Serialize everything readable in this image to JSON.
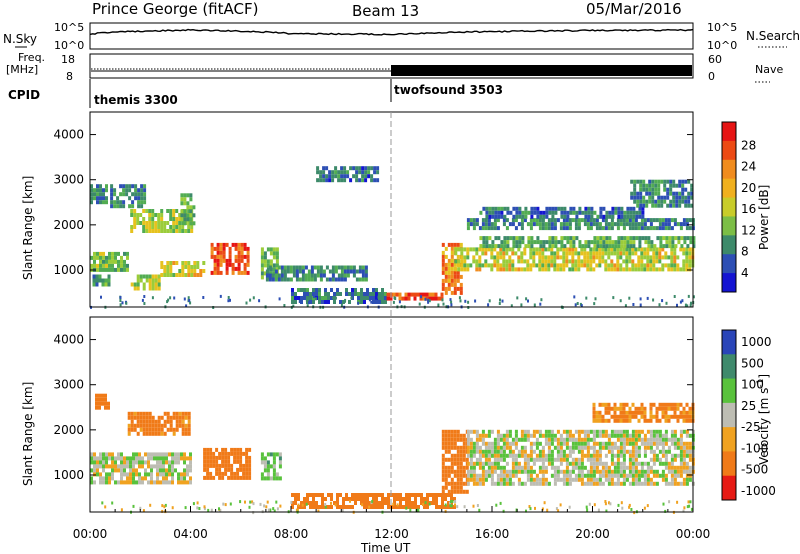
{
  "header": {
    "station": "Prince George (fitACF)",
    "beam": "Beam 13",
    "date": "05/Mar/2016"
  },
  "top_panels": {
    "nsky_label": "N.Sky",
    "nsearch_label": "N.Search",
    "noise_ticks": [
      "10^5",
      "10^0"
    ],
    "freq_label_1": "Freq.",
    "freq_label_2": "[MHz]",
    "freq_ticks": [
      "18",
      "8"
    ],
    "nave_label": "Nave",
    "nave_ticks": [
      "60",
      "0"
    ],
    "cpid_label": "CPID",
    "cpid_entries": [
      {
        "name": "themis 3300",
        "start_hour": 0
      },
      {
        "name": "twofsound 3503",
        "start_hour": 12
      }
    ]
  },
  "axes": {
    "ylabel": "Slant Range [km]",
    "y_ticks": [
      1000,
      2000,
      3000,
      4000
    ],
    "ylim": [
      180,
      4500
    ],
    "xlabel": "Time UT",
    "x_ticks": [
      "00:00",
      "04:00",
      "08:00",
      "12:00",
      "16:00",
      "20:00",
      "00:00"
    ],
    "xlim_hours": [
      0,
      24
    ]
  },
  "power_colorbar": {
    "label": "Power [dB]",
    "ticks": [
      "4",
      "8",
      "12",
      "16",
      "20",
      "24",
      "28"
    ],
    "range": [
      0,
      32
    ]
  },
  "velocity_colorbar": {
    "label_main": "Velocity",
    "label_unit": "[m s",
    "label_exp": "-1",
    "label_close": "]",
    "ticks": [
      "1000",
      "500",
      "100",
      "25",
      "-25",
      "-100",
      "-500",
      "-1000"
    ]
  },
  "chart_data": [
    {
      "type": "heatmap",
      "title": "Power",
      "xlabel": "Time UT",
      "ylabel": "Slant Range [km]",
      "x_range_hours": [
        0,
        24
      ],
      "y_range_km": [
        180,
        4500
      ],
      "value_units": "dB",
      "value_range": [
        0,
        32
      ],
      "echo_regions": [
        {
          "t": [
            0.0,
            1.5
          ],
          "range": [
            1000,
            1400
          ],
          "power": 16
        },
        {
          "t": [
            0.1,
            0.8
          ],
          "range": [
            700,
            900
          ],
          "power": 12
        },
        {
          "t": [
            0.0,
            0.6
          ],
          "range": [
            2500,
            2900
          ],
          "power": 10
        },
        {
          "t": [
            1.5,
            2.8
          ],
          "range": [
            550,
            900
          ],
          "power": 18
        },
        {
          "t": [
            2.8,
            4.5
          ],
          "range": [
            900,
            1200
          ],
          "power": 20
        },
        {
          "t": [
            1.6,
            4.0
          ],
          "range": [
            1850,
            2350
          ],
          "power": 18
        },
        {
          "t": [
            0.8,
            2.2
          ],
          "range": [
            2400,
            2900
          ],
          "power": 10
        },
        {
          "t": [
            3.6,
            4.1
          ],
          "range": [
            2000,
            2700
          ],
          "power": 14
        },
        {
          "t": [
            4.8,
            6.3
          ],
          "range": [
            900,
            1600
          ],
          "power": 30
        },
        {
          "t": [
            6.8,
            7.5
          ],
          "range": [
            850,
            1500
          ],
          "power": 14
        },
        {
          "t": [
            7.0,
            11.0
          ],
          "range": [
            800,
            1100
          ],
          "power": 10
        },
        {
          "t": [
            8.0,
            11.8
          ],
          "range": [
            300,
            600
          ],
          "power": 8
        },
        {
          "t": [
            11.8,
            14.0
          ],
          "range": [
            350,
            500
          ],
          "power": 30
        },
        {
          "t": [
            9.0,
            11.5
          ],
          "range": [
            3000,
            3300
          ],
          "power": 8
        },
        {
          "t": [
            14.0,
            14.8
          ],
          "range": [
            500,
            1600
          ],
          "power": 26
        },
        {
          "t": [
            14.5,
            24.0
          ],
          "range": [
            1000,
            1500
          ],
          "power": 20
        },
        {
          "t": [
            15.5,
            24.0
          ],
          "range": [
            1500,
            1750
          ],
          "power": 14
        },
        {
          "t": [
            15.0,
            24.0
          ],
          "range": [
            1900,
            2150
          ],
          "power": 10
        },
        {
          "t": [
            15.5,
            22.0
          ],
          "range": [
            2200,
            2400
          ],
          "power": 8
        },
        {
          "t": [
            21.5,
            24.0
          ],
          "range": [
            2400,
            3000
          ],
          "power": 10
        }
      ]
    },
    {
      "type": "heatmap",
      "title": "Velocity",
      "xlabel": "Time UT",
      "ylabel": "Slant Range [km]",
      "x_range_hours": [
        0,
        24
      ],
      "y_range_km": [
        180,
        4500
      ],
      "value_units": "m s-1",
      "value_range": [
        -1000,
        1000
      ],
      "echo_regions": [
        {
          "t": [
            0.0,
            4.0
          ],
          "range": [
            800,
            1500
          ],
          "velocity": 0
        },
        {
          "t": [
            1.5,
            4.0
          ],
          "range": [
            1900,
            2400
          ],
          "velocity": -150
        },
        {
          "t": [
            4.5,
            6.3
          ],
          "range": [
            900,
            1600
          ],
          "velocity": -300
        },
        {
          "t": [
            6.8,
            7.6
          ],
          "range": [
            900,
            1500
          ],
          "velocity": 60
        },
        {
          "t": [
            8.0,
            14.5
          ],
          "range": [
            300,
            600
          ],
          "velocity": -200
        },
        {
          "t": [
            14.0,
            15.0
          ],
          "range": [
            600,
            2000
          ],
          "velocity": -200
        },
        {
          "t": [
            15.0,
            24.0
          ],
          "range": [
            800,
            2000
          ],
          "velocity": 0
        },
        {
          "t": [
            20.0,
            24.0
          ],
          "range": [
            2200,
            2600
          ],
          "velocity": -120
        },
        {
          "t": [
            0.2,
            0.7
          ],
          "range": [
            2500,
            2800
          ],
          "velocity": -200
        }
      ]
    },
    {
      "type": "line",
      "title": "Noise",
      "series": [
        {
          "name": "N.Sky",
          "x_hours": [
            0,
            4,
            8,
            12,
            16,
            20,
            24
          ],
          "values": [
            1000,
            6000,
            1200,
            800,
            3000,
            5000,
            6000
          ]
        },
        {
          "name": "N.Search",
          "x_hours": [
            0,
            4,
            8,
            12,
            16,
            20,
            24
          ],
          "values": [
            5,
            5,
            5,
            5,
            5,
            5,
            5
          ]
        }
      ]
    },
    {
      "type": "line",
      "title": "Freq. / Nave",
      "series": [
        {
          "name": "Freq. [MHz]",
          "x_hours": [
            0,
            12,
            12,
            24
          ],
          "values": [
            10,
            10,
            10.5,
            10.5
          ]
        },
        {
          "name": "Nave",
          "x_hours": [
            0,
            12,
            12,
            24
          ],
          "values": [
            9,
            9,
            40,
            40
          ]
        }
      ]
    }
  ]
}
